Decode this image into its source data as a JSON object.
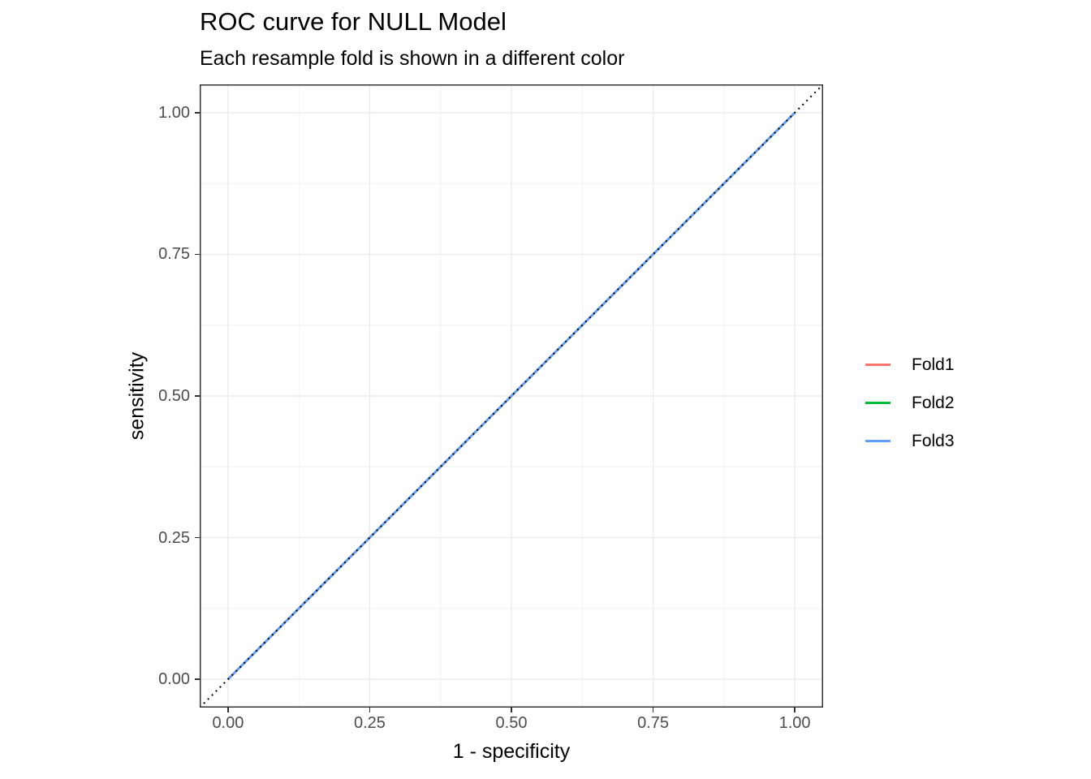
{
  "chart_data": {
    "type": "line",
    "title": "ROC curve for NULL Model",
    "subtitle": "Each resample fold is shown in a different color",
    "xlabel": "1 - specificity",
    "ylabel": "sensitivity",
    "xlim": [
      -0.05,
      1.05
    ],
    "ylim": [
      -0.05,
      1.05
    ],
    "x_ticks": [
      0,
      0.25,
      0.5,
      0.75,
      1
    ],
    "y_ticks": [
      0,
      0.25,
      0.5,
      0.75,
      1
    ],
    "x_tick_labels": [
      "0.00",
      "0.25",
      "0.50",
      "0.75",
      "1.00"
    ],
    "y_tick_labels": [
      "0.00",
      "0.25",
      "0.50",
      "0.75",
      "1.00"
    ],
    "minor_breaks": [
      0.125,
      0.375,
      0.625,
      0.875
    ],
    "grid": true,
    "legend_position": "right",
    "series": [
      {
        "name": "Fold1",
        "color": "#F8766D",
        "x": [
          0,
          1
        ],
        "y": [
          0,
          1
        ]
      },
      {
        "name": "Fold2",
        "color": "#00BA38",
        "x": [
          0,
          1
        ],
        "y": [
          0,
          1
        ]
      },
      {
        "name": "Fold3",
        "color": "#619CFF",
        "x": [
          0,
          1
        ],
        "y": [
          0,
          1
        ]
      }
    ],
    "reference_line": {
      "style": "dotted",
      "color": "#000000",
      "x": [
        -0.05,
        1.05
      ],
      "y": [
        -0.05,
        1.05
      ]
    },
    "style": {
      "panel_border": "#333333",
      "grid_major": "#EBEBEB",
      "grid_minor": "#F0F0F0",
      "tick_color": "#333333",
      "tick_label_color": "#4D4D4D"
    }
  }
}
